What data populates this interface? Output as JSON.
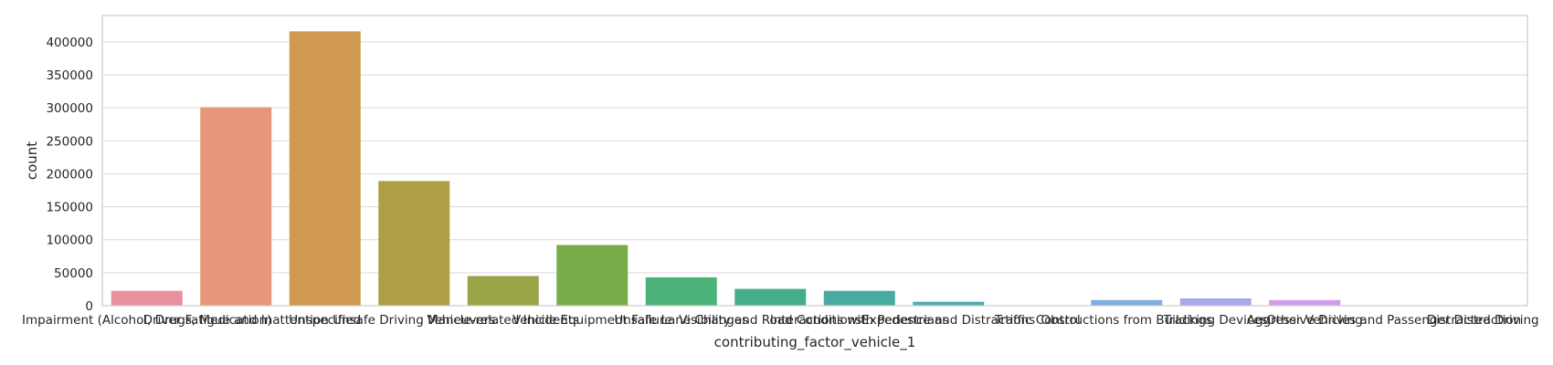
{
  "chart_data": {
    "type": "bar",
    "xlabel": "contributing_factor_vehicle_1",
    "ylabel": "count",
    "ylim": [
      0,
      440000
    ],
    "yticks": [
      0,
      50000,
      100000,
      150000,
      200000,
      250000,
      300000,
      350000,
      400000
    ],
    "grid": true,
    "categories": [
      "Impairment (Alcohol, Drugs, Medication)",
      "Driver Fatigue and Inattention",
      "Unspecified",
      "Unsafe Driving Maneuvers",
      "Vehicle-related Incidents",
      "Vehicle Equipment Failure",
      "Unsafe Lane Changes",
      "Visibility and Road Conditions",
      "Interactions with Pedestrians",
      "Experience and Distractions",
      "Traffic Control",
      "Obstructions from Buildings",
      "Tracking Devices",
      "Aggressive Driving",
      "Other Vehicles and Passenger Distraction",
      "Distracted Driving"
    ],
    "values": [
      22500,
      301000,
      416000,
      189000,
      45000,
      92000,
      43000,
      25500,
      22500,
      6000,
      500,
      8500,
      11000,
      8500,
      500,
      500
    ],
    "colors": [
      "#e8909b",
      "#e8967a",
      "#cf9a4f",
      "#ae9e46",
      "#9ba446",
      "#77ac48",
      "#4ab379",
      "#46ad8c",
      "#48ab9f",
      "#4cadb2",
      "#55aec8",
      "#7faee0",
      "#a9a6ea",
      "#d19cea",
      "#e591d6",
      "#e78fb9"
    ]
  }
}
